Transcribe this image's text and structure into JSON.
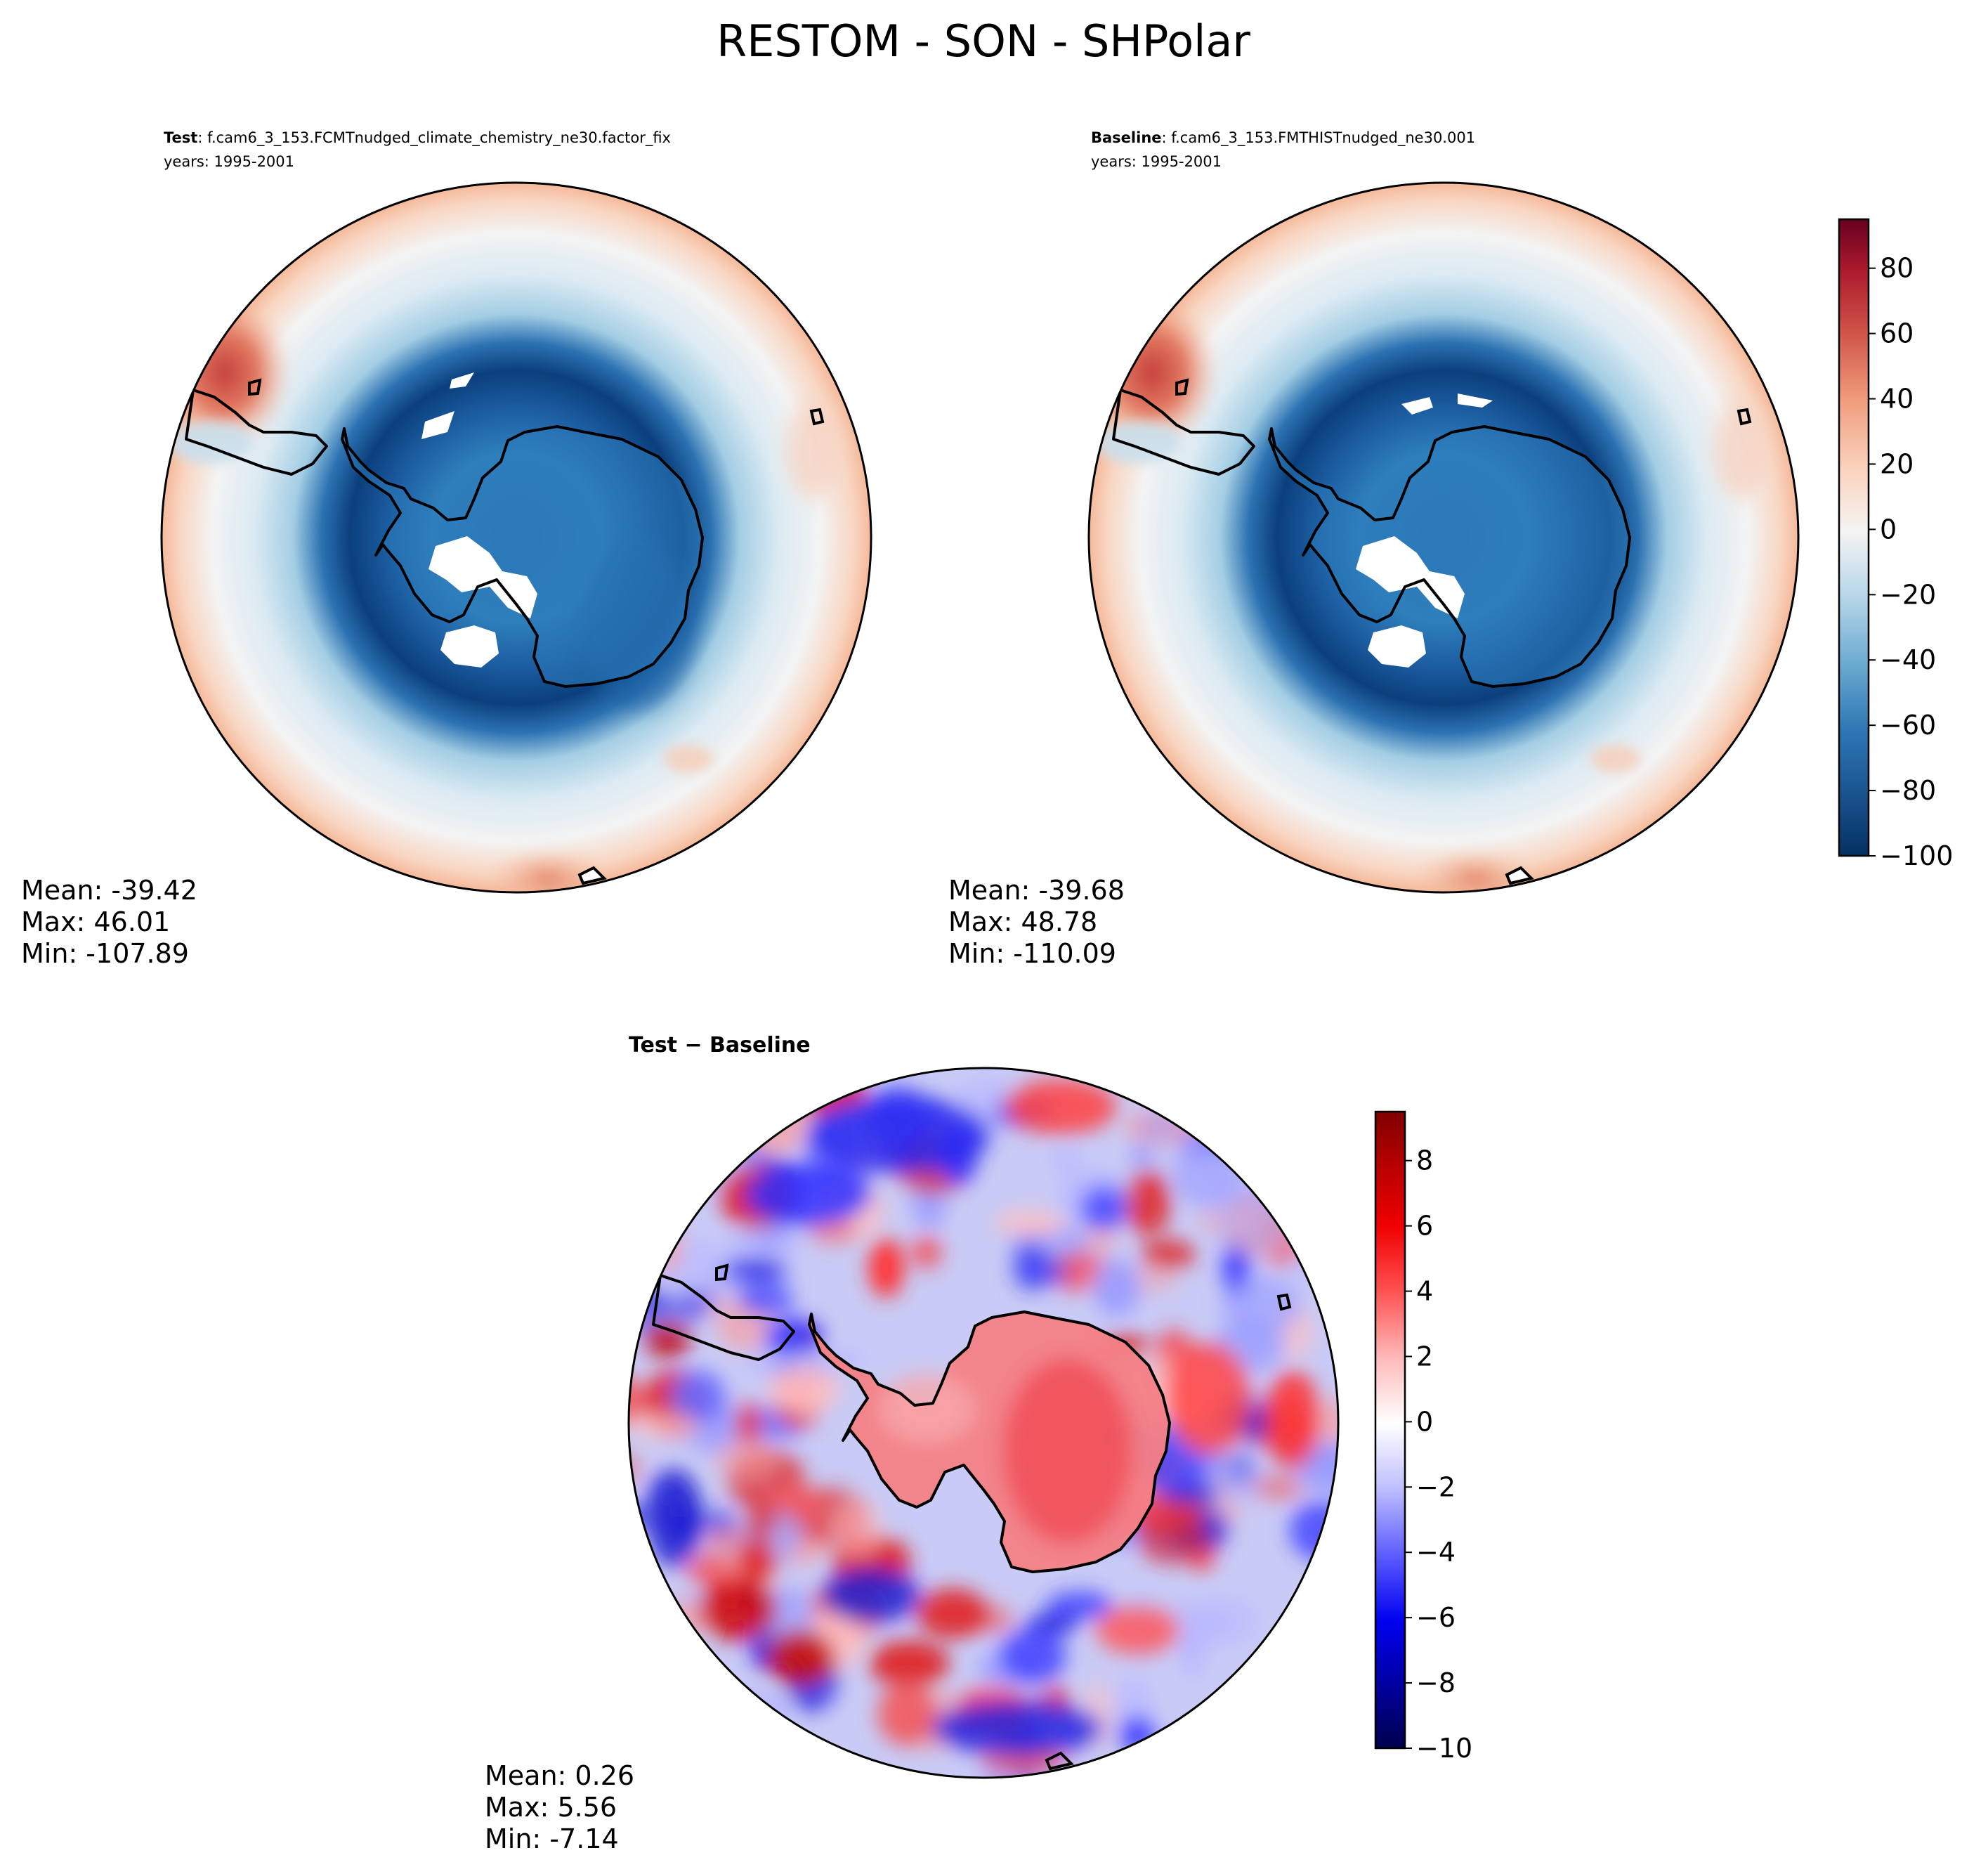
{
  "figure": {
    "title": "RESTOM - SON - SHPolar"
  },
  "panels": {
    "test": {
      "label": "Test",
      "case": ": f.cam6_3_153.FCMTnudged_climate_chemistry_ne30.factor_fix",
      "years": "years: 1995-2001",
      "stats": {
        "mean": "Mean: -39.42",
        "max": "Max: 46.01",
        "min": "Min: -107.89"
      }
    },
    "baseline": {
      "label": "Baseline",
      "case": ": f.cam6_3_153.FMTHISTnudged_ne30.001",
      "years": "years: 1995-2001",
      "stats": {
        "mean": "Mean: -39.68",
        "max": "Max: 48.78",
        "min": "Min: -110.09"
      }
    },
    "diff": {
      "label": "Test − Baseline",
      "stats": {
        "mean": "Mean:  0.26",
        "max": "Max:  5.56",
        "min": "Min: -7.14"
      }
    }
  },
  "colorbars": {
    "main": {
      "cmap": "RdBu_r",
      "range": [
        -100,
        95
      ],
      "ticks": [
        {
          "value": -100,
          "label": "−100"
        },
        {
          "value": -80,
          "label": "−80"
        },
        {
          "value": -60,
          "label": "−60"
        },
        {
          "value": -40,
          "label": "−40"
        },
        {
          "value": -20,
          "label": "−20"
        },
        {
          "value": 0,
          "label": "0"
        },
        {
          "value": 20,
          "label": "20"
        },
        {
          "value": 40,
          "label": "40"
        },
        {
          "value": 60,
          "label": "60"
        },
        {
          "value": 80,
          "label": "80"
        }
      ],
      "colors": [
        "#053061",
        "#2166ac",
        "#4393c3",
        "#92c5de",
        "#d1e5f0",
        "#f7f7f7",
        "#fddbc7",
        "#f4a582",
        "#d6604d",
        "#b2182b",
        "#67001f"
      ]
    },
    "diff": {
      "cmap": "seismic",
      "range": [
        -10,
        9.5
      ],
      "ticks": [
        {
          "value": -10,
          "label": "−10"
        },
        {
          "value": -8,
          "label": "−8"
        },
        {
          "value": -6,
          "label": "−6"
        },
        {
          "value": -4,
          "label": "−4"
        },
        {
          "value": -2,
          "label": "−2"
        },
        {
          "value": 0,
          "label": "0"
        },
        {
          "value": 2,
          "label": "2"
        },
        {
          "value": 4,
          "label": "4"
        },
        {
          "value": 6,
          "label": "6"
        },
        {
          "value": 8,
          "label": "8"
        }
      ],
      "colors": [
        "#00004c",
        "#0000e0",
        "#5050ff",
        "#c8c8ff",
        "#ffffff",
        "#ffc8c8",
        "#ff5050",
        "#e00000",
        "#800000"
      ]
    }
  }
}
